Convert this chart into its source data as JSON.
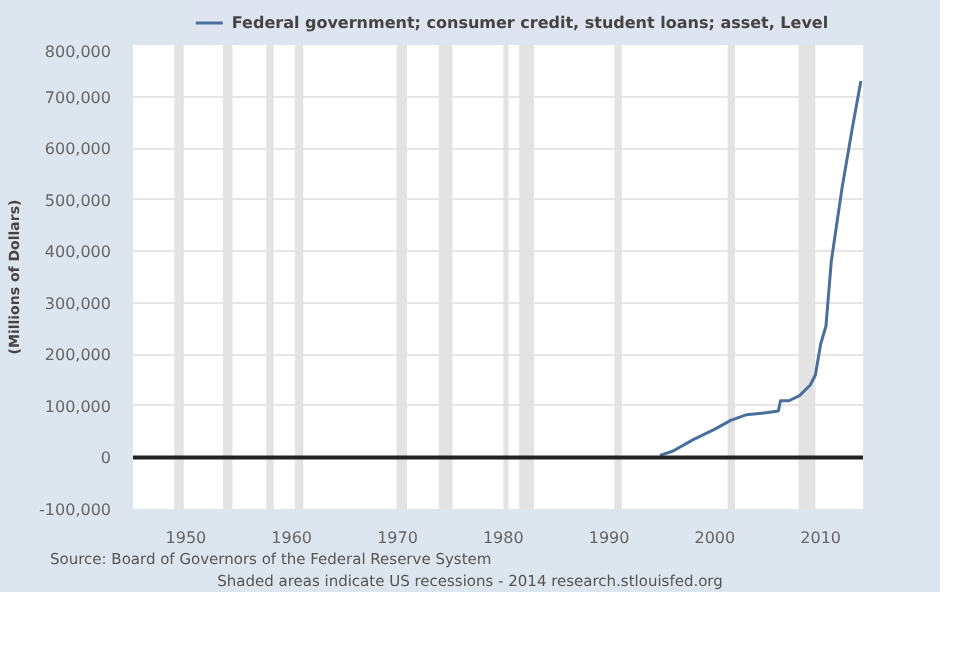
{
  "chart_data": {
    "type": "line",
    "ylabel": "(Millions of Dollars)",
    "legend": "top",
    "series": [
      {
        "name": "Federal government; consumer credit, student loans; asset, Level",
        "color": "#4a6f9c",
        "x": [
          1994.8,
          1996,
          1998,
          2000,
          2001.5,
          2003,
          2005,
          2006,
          2006.2,
          2007,
          2008,
          2009,
          2009.5,
          2010,
          2010.5,
          2011,
          2012,
          2013,
          2013.8
        ],
        "values": [
          4000,
          12000,
          35000,
          55000,
          72000,
          83000,
          87000,
          90000,
          110000,
          110000,
          120000,
          140000,
          160000,
          220000,
          255000,
          380000,
          520000,
          640000,
          730000
        ]
      }
    ],
    "xlim": [
      1945,
      2014
    ],
    "xticks": [
      1950,
      1960,
      1970,
      1980,
      1990,
      2000,
      2010
    ],
    "ylim": [
      -100000,
      800000
    ],
    "yticks": [
      {
        "value": -100000,
        "label": "-100,000"
      },
      0,
      {
        "value": 100000,
        "label": "100,000"
      },
      {
        "value": 200000,
        "label": "200,000"
      },
      {
        "value": 300000,
        "label": "300,000"
      },
      {
        "value": 400000,
        "label": "400,000"
      },
      {
        "value": 500000,
        "label": "500,000"
      },
      {
        "value": 600000,
        "label": "600,000"
      },
      {
        "value": 700000,
        "label": "700,000"
      },
      {
        "value": 800000,
        "label": "800,000"
      }
    ],
    "grid": "y",
    "ref_lines": [
      {
        "axis": "y",
        "value": 0,
        "color": "#222222"
      }
    ],
    "bands": [
      {
        "axis": "x",
        "from": 1948.9,
        "to": 1949.8,
        "color": "#e3e3e3"
      },
      {
        "axis": "x",
        "from": 1953.5,
        "to": 1954.4,
        "color": "#e3e3e3"
      },
      {
        "axis": "x",
        "from": 1957.6,
        "to": 1958.3,
        "color": "#e3e3e3"
      },
      {
        "axis": "x",
        "from": 1960.3,
        "to": 1961.1,
        "color": "#e3e3e3"
      },
      {
        "axis": "x",
        "from": 1969.9,
        "to": 1970.9,
        "color": "#e3e3e3"
      },
      {
        "axis": "x",
        "from": 1973.9,
        "to": 1975.2,
        "color": "#e3e3e3"
      },
      {
        "axis": "x",
        "from": 1980.0,
        "to": 1980.5,
        "color": "#e3e3e3"
      },
      {
        "axis": "x",
        "from": 1981.5,
        "to": 1982.9,
        "color": "#e3e3e3"
      },
      {
        "axis": "x",
        "from": 1990.5,
        "to": 1991.2,
        "color": "#e3e3e3"
      },
      {
        "axis": "x",
        "from": 2001.2,
        "to": 2001.9,
        "color": "#e3e3e3"
      },
      {
        "axis": "x",
        "from": 2007.9,
        "to": 2009.5,
        "color": "#e3e3e3"
      }
    ],
    "annotations": [
      "Source: Board of Governors of the Federal Reserve System",
      "Shaded areas indicate US recessions - 2014 research.stlouisfed.org"
    ]
  }
}
